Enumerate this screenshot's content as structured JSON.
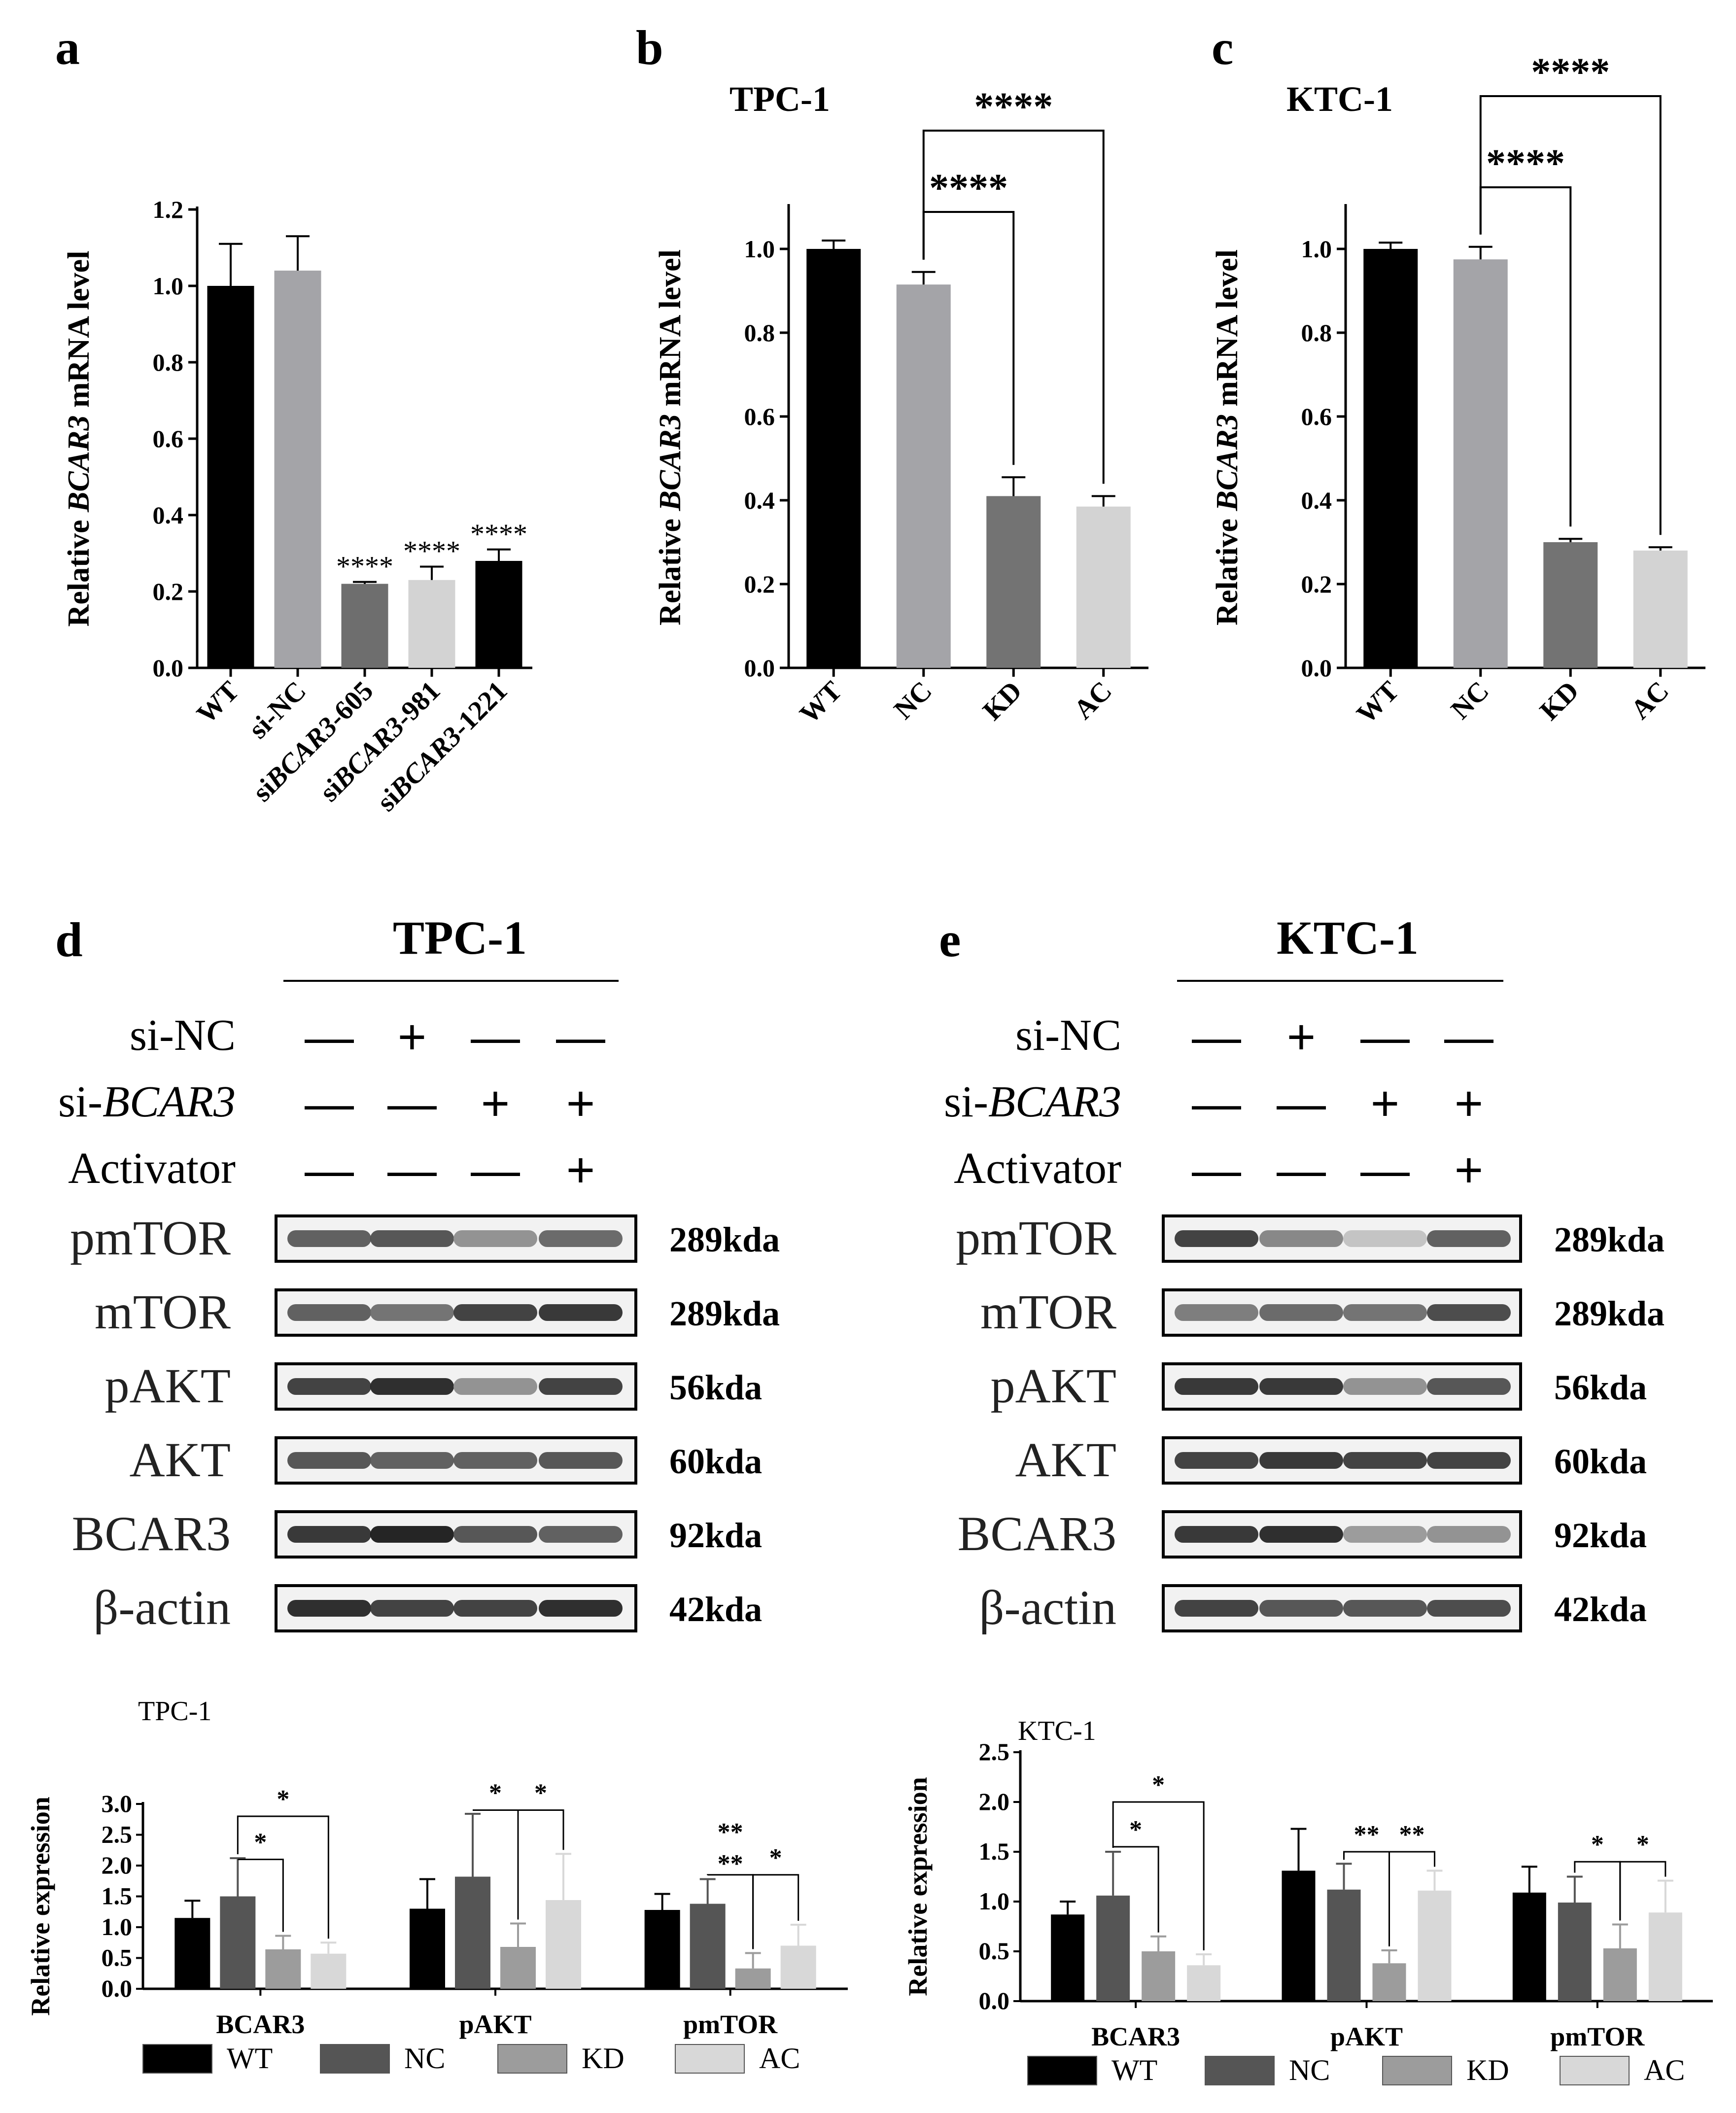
{
  "colors": {
    "wt": "#000000",
    "nc": "#a4a4a8",
    "kd": "#737373",
    "ac": "#d3d3d3",
    "grp_nc": "#555555",
    "grp_kd": "#9c9c9c",
    "grp_ac": "#d8d8d8"
  },
  "panels": {
    "a": "a",
    "b": "b",
    "c": "c",
    "d": "d",
    "e": "e"
  },
  "chart_data": [
    {
      "id": "a",
      "type": "bar",
      "title": "",
      "ylabel_prefix": "Relative ",
      "ylabel_gene": "BCAR3",
      "ylabel_suffix": " mRNA level",
      "ylim": [
        0,
        1.2
      ],
      "yticks": [
        "0.0",
        "0.2",
        "0.4",
        "0.6",
        "0.8",
        "1.0",
        "1.2"
      ],
      "categories": [
        "WT",
        "si-NC",
        "siBCAR3-605",
        "siBCAR3-981",
        "siBCAR3-1221"
      ],
      "values": [
        1.0,
        1.04,
        0.22,
        0.23,
        0.28
      ],
      "errors": [
        0.11,
        0.09,
        0.005,
        0.035,
        0.03
      ],
      "bar_colors": [
        "#000000",
        "#a4a4a8",
        "#6e6e6e",
        "#d3d3d3",
        "#000000"
      ],
      "annotations": [
        "",
        "",
        "****",
        "****",
        "****"
      ]
    },
    {
      "id": "b",
      "type": "bar",
      "title": "TPC-1",
      "ylabel_prefix": "Relative ",
      "ylabel_gene": "BCAR3",
      "ylabel_suffix": " mRNA level",
      "ylim": [
        0,
        1.1
      ],
      "yticks": [
        "0.0",
        "0.2",
        "0.4",
        "0.6",
        "0.8",
        "1.0"
      ],
      "categories": [
        "WT",
        "NC",
        "KD",
        "AC"
      ],
      "values": [
        1.0,
        0.915,
        0.41,
        0.385
      ],
      "errors": [
        0.02,
        0.03,
        0.045,
        0.025
      ],
      "bar_colors": [
        "#000000",
        "#a4a4a8",
        "#737373",
        "#d3d3d3"
      ],
      "brackets": [
        {
          "from": 1,
          "to": 2,
          "label": "****"
        },
        {
          "from": 1,
          "to": 3,
          "label": "****"
        }
      ]
    },
    {
      "id": "c",
      "type": "bar",
      "title": "KTC-1",
      "ylabel_prefix": "Relative ",
      "ylabel_gene": "BCAR3",
      "ylabel_suffix": " mRNA level",
      "ylim": [
        0,
        1.1
      ],
      "yticks": [
        "0.0",
        "0.2",
        "0.4",
        "0.6",
        "0.8",
        "1.0"
      ],
      "categories": [
        "WT",
        "NC",
        "KD",
        "AC"
      ],
      "values": [
        1.0,
        0.975,
        0.3,
        0.28
      ],
      "errors": [
        0.015,
        0.03,
        0.008,
        0.008
      ],
      "bar_colors": [
        "#000000",
        "#a4a4a8",
        "#737373",
        "#d3d3d3"
      ],
      "brackets": [
        {
          "from": 1,
          "to": 2,
          "label": "****"
        },
        {
          "from": 1,
          "to": 3,
          "label": "****"
        }
      ]
    },
    {
      "id": "d-chart",
      "type": "bar",
      "title": "TPC-1",
      "ylabel": "Relative expression",
      "ylim": [
        0,
        3.0
      ],
      "yticks": [
        "0.0",
        "0.5",
        "1.0",
        "1.5",
        "2.0",
        "2.5",
        "3.0"
      ],
      "groups": [
        "BCAR3",
        "pAKT",
        "pmTOR"
      ],
      "series": [
        {
          "name": "WT",
          "values": [
            1.15,
            1.3,
            1.28
          ],
          "errors": [
            0.28,
            0.48,
            0.26
          ]
        },
        {
          "name": "NC",
          "values": [
            1.5,
            1.82,
            1.38
          ],
          "errors": [
            0.62,
            1.02,
            0.4
          ]
        },
        {
          "name": "KD",
          "values": [
            0.64,
            0.68,
            0.33
          ],
          "errors": [
            0.22,
            0.38,
            0.25
          ]
        },
        {
          "name": "AC",
          "values": [
            0.57,
            1.44,
            0.7
          ],
          "errors": [
            0.18,
            0.75,
            0.34
          ]
        }
      ],
      "brackets": [
        {
          "group": 0,
          "from": 1,
          "to": 2,
          "label": "*",
          "level": 2.1
        },
        {
          "group": 0,
          "from": 1,
          "to": 3,
          "label": "*",
          "level": 2.8
        },
        {
          "group": 1,
          "from": 1,
          "to": 2,
          "label": "*",
          "level": 2.9
        },
        {
          "group": 1,
          "from": 2,
          "to": 3,
          "label": "*",
          "level": 2.9
        },
        {
          "group": 2,
          "from": 1,
          "to": 2,
          "label": "****",
          "level": 1.85
        },
        {
          "group": 2,
          "from": 2,
          "to": 3,
          "label": "*",
          "level": 1.85
        }
      ]
    },
    {
      "id": "e-chart",
      "type": "bar",
      "title": "KTC-1",
      "ylabel": "Relative expression",
      "ylim": [
        0,
        2.5
      ],
      "yticks": [
        "0.0",
        "0.5",
        "1.0",
        "1.5",
        "2.0",
        "2.5"
      ],
      "groups": [
        "BCAR3",
        "pAKT",
        "pmTOR"
      ],
      "series": [
        {
          "name": "WT",
          "values": [
            0.87,
            1.31,
            1.09
          ],
          "errors": [
            0.13,
            0.42,
            0.26
          ]
        },
        {
          "name": "NC",
          "values": [
            1.06,
            1.12,
            0.99
          ],
          "errors": [
            0.44,
            0.26,
            0.26
          ]
        },
        {
          "name": "KD",
          "values": [
            0.5,
            0.38,
            0.53
          ],
          "errors": [
            0.15,
            0.13,
            0.24
          ]
        },
        {
          "name": "AC",
          "values": [
            0.36,
            1.11,
            0.89
          ],
          "errors": [
            0.11,
            0.2,
            0.32
          ]
        }
      ],
      "brackets": [
        {
          "group": 0,
          "from": 1,
          "to": 2,
          "label": "*",
          "level": 1.55
        },
        {
          "group": 0,
          "from": 1,
          "to": 3,
          "label": "*",
          "level": 2.0
        },
        {
          "group": 1,
          "from": 1,
          "to": 2,
          "label": "**",
          "level": 1.5
        },
        {
          "group": 1,
          "from": 2,
          "to": 3,
          "label": "**",
          "level": 1.5
        },
        {
          "group": 2,
          "from": 1,
          "to": 2,
          "label": "*",
          "level": 1.4
        },
        {
          "group": 2,
          "from": 2,
          "to": 3,
          "label": "*",
          "level": 1.4
        }
      ]
    }
  ],
  "legend": [
    "WT",
    "NC",
    "KD",
    "AC"
  ],
  "blots": {
    "d": {
      "title": "TPC-1",
      "rows": [
        {
          "label_prefix": "si-NC",
          "label_gene": "",
          "signs": [
            "—",
            "+",
            "—",
            "—"
          ]
        },
        {
          "label_prefix": "si-",
          "label_gene": "BCAR3",
          "signs": [
            "—",
            "—",
            "+",
            "+"
          ]
        },
        {
          "label_prefix": "Activator",
          "label_gene": "",
          "signs": [
            "—",
            "—",
            "—",
            "+"
          ]
        }
      ],
      "bands": [
        {
          "name": "pmTOR",
          "kda": "289kda",
          "intensity": [
            0.7,
            0.75,
            0.45,
            0.65
          ]
        },
        {
          "name": "mTOR",
          "kda": "289kda",
          "intensity": [
            0.7,
            0.6,
            0.85,
            0.9
          ]
        },
        {
          "name": "pAKT",
          "kda": "56kda",
          "intensity": [
            0.85,
            0.95,
            0.45,
            0.85
          ]
        },
        {
          "name": "AKT",
          "kda": "60kda",
          "intensity": [
            0.75,
            0.7,
            0.7,
            0.75
          ]
        },
        {
          "name": "BCAR3",
          "kda": "92kda",
          "intensity": [
            0.9,
            1.0,
            0.75,
            0.7
          ]
        },
        {
          "name": "β-actin",
          "kda": "42kda",
          "intensity": [
            0.95,
            0.85,
            0.85,
            0.95
          ]
        }
      ]
    },
    "e": {
      "title": "KTC-1",
      "rows": [
        {
          "label_prefix": "si-NC",
          "label_gene": "",
          "signs": [
            "—",
            "+",
            "—",
            "—"
          ]
        },
        {
          "label_prefix": "si-",
          "label_gene": "BCAR3",
          "signs": [
            "—",
            "—",
            "+",
            "+"
          ]
        },
        {
          "label_prefix": "Activator",
          "label_gene": "",
          "signs": [
            "—",
            "—",
            "—",
            "+"
          ]
        }
      ],
      "bands": [
        {
          "name": "pmTOR",
          "kda": "289kda",
          "intensity": [
            0.85,
            0.5,
            0.2,
            0.7
          ]
        },
        {
          "name": "mTOR",
          "kda": "289kda",
          "intensity": [
            0.55,
            0.65,
            0.6,
            0.8
          ]
        },
        {
          "name": "pAKT",
          "kda": "56kda",
          "intensity": [
            0.9,
            0.9,
            0.45,
            0.75
          ]
        },
        {
          "name": "AKT",
          "kda": "60kda",
          "intensity": [
            0.85,
            0.9,
            0.85,
            0.85
          ]
        },
        {
          "name": "BCAR3",
          "kda": "92kda",
          "intensity": [
            0.9,
            0.95,
            0.4,
            0.45
          ]
        },
        {
          "name": "β-actin",
          "kda": "42kda",
          "intensity": [
            0.85,
            0.75,
            0.75,
            0.8
          ]
        }
      ]
    }
  }
}
